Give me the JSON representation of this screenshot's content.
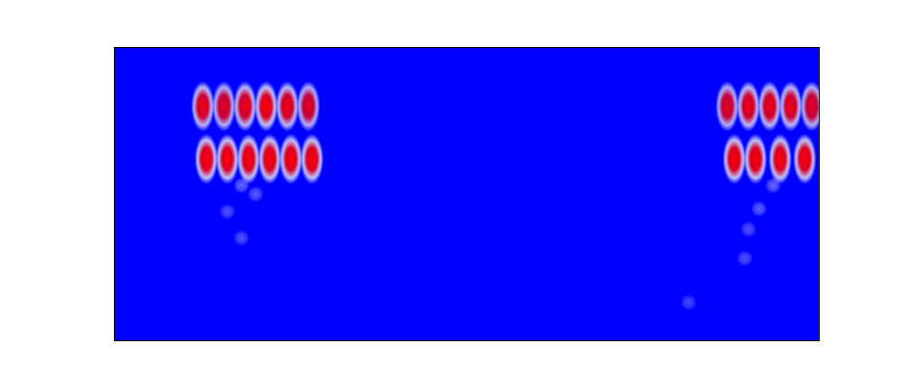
{
  "chart_data": {
    "type": "heatmap",
    "title": "",
    "xlabel": "",
    "ylabel": "",
    "colormap": {
      "low": "#0000ff",
      "mid": "#ffffff",
      "high": "#ff0000"
    },
    "grid": false,
    "legend": "none",
    "events": [
      {
        "label": "",
        "clusters": [
          {
            "x": 0.125,
            "y": 0.2,
            "intensity": 0.85
          },
          {
            "x": 0.155,
            "y": 0.2,
            "intensity": 0.8
          },
          {
            "x": 0.185,
            "y": 0.2,
            "intensity": 0.85
          },
          {
            "x": 0.215,
            "y": 0.2,
            "intensity": 0.9
          },
          {
            "x": 0.245,
            "y": 0.2,
            "intensity": 0.85
          },
          {
            "x": 0.275,
            "y": 0.2,
            "intensity": 0.8
          },
          {
            "x": 0.13,
            "y": 0.38,
            "intensity": 0.95
          },
          {
            "x": 0.16,
            "y": 0.38,
            "intensity": 0.95
          },
          {
            "x": 0.19,
            "y": 0.38,
            "intensity": 0.95
          },
          {
            "x": 0.22,
            "y": 0.38,
            "intensity": 0.95
          },
          {
            "x": 0.25,
            "y": 0.38,
            "intensity": 0.95
          },
          {
            "x": 0.28,
            "y": 0.38,
            "intensity": 0.9
          },
          {
            "x": 0.18,
            "y": 0.47,
            "intensity": 0.35
          },
          {
            "x": 0.2,
            "y": 0.5,
            "intensity": 0.3
          },
          {
            "x": 0.16,
            "y": 0.56,
            "intensity": 0.25
          },
          {
            "x": 0.18,
            "y": 0.65,
            "intensity": 0.25
          }
        ]
      },
      {
        "label": "",
        "clusters": [
          {
            "x": 0.87,
            "y": 0.2,
            "intensity": 0.8
          },
          {
            "x": 0.9,
            "y": 0.2,
            "intensity": 0.85
          },
          {
            "x": 0.93,
            "y": 0.2,
            "intensity": 0.85
          },
          {
            "x": 0.96,
            "y": 0.2,
            "intensity": 0.85
          },
          {
            "x": 0.99,
            "y": 0.2,
            "intensity": 0.8
          },
          {
            "x": 0.88,
            "y": 0.38,
            "intensity": 0.95
          },
          {
            "x": 0.91,
            "y": 0.38,
            "intensity": 0.95
          },
          {
            "x": 0.945,
            "y": 0.38,
            "intensity": 0.95
          },
          {
            "x": 0.98,
            "y": 0.38,
            "intensity": 0.95
          },
          {
            "x": 0.935,
            "y": 0.47,
            "intensity": 0.35
          },
          {
            "x": 0.915,
            "y": 0.55,
            "intensity": 0.3
          },
          {
            "x": 0.9,
            "y": 0.62,
            "intensity": 0.25
          },
          {
            "x": 0.895,
            "y": 0.72,
            "intensity": 0.25
          },
          {
            "x": 0.815,
            "y": 0.87,
            "intensity": 0.2
          }
        ]
      }
    ]
  }
}
